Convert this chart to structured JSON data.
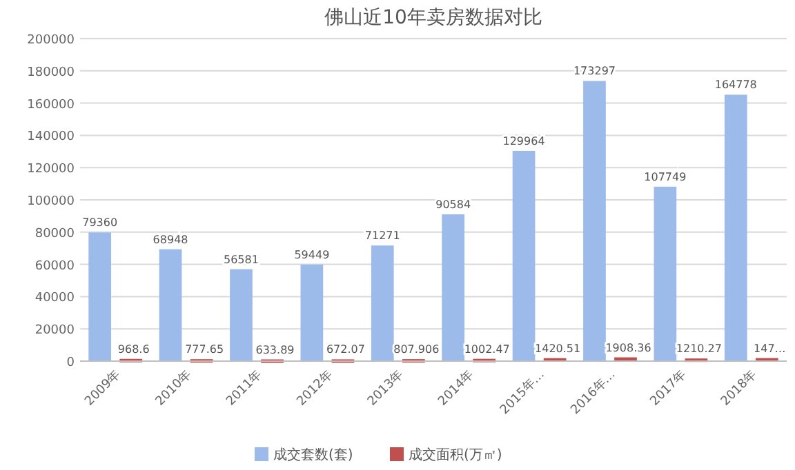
{
  "chart_data": {
    "type": "bar",
    "title": "佛山近10年卖房数据对比",
    "categories": [
      "2009年",
      "2010年",
      "2011年",
      "2012年",
      "2013年",
      "2014年",
      "2015年…",
      "2016年…",
      "2017年",
      "2018年"
    ],
    "series": [
      {
        "name": "成交套数(套)",
        "color": "#9dbbea",
        "values": [
          79360,
          68948,
          56581,
          59449,
          71271,
          90584,
          129964,
          173297,
          107749,
          164778
        ]
      },
      {
        "name": "成交面积(万㎡)",
        "color": "#c0504d",
        "values": [
          968.6,
          777.65,
          633.89,
          672.07,
          807.906,
          1002.47,
          1420.51,
          1908.36,
          1210.27,
          1470
        ],
        "value_labels": [
          "968.6",
          "777.65",
          "633.89",
          "672.07",
          "807.906",
          "1002.47",
          "1420.51",
          "1908.36",
          "1210.27",
          "147…"
        ]
      }
    ],
    "ylim": [
      0,
      200000
    ],
    "yticks": [
      0,
      20000,
      40000,
      60000,
      80000,
      100000,
      120000,
      140000,
      160000,
      180000,
      200000
    ],
    "grid": "y",
    "legend": "bottom",
    "data_labels": true
  }
}
